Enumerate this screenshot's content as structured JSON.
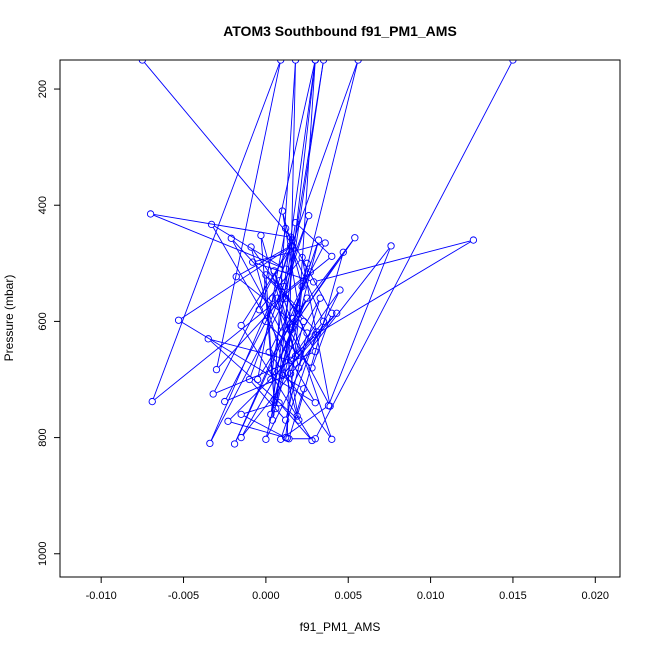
{
  "chart_data": {
    "type": "scatter",
    "title": "ATOM3 Southbound f91_PM1_AMS",
    "xlabel": "f91_PM1_AMS",
    "ylabel": "Pressure (mbar)",
    "xlim": [
      -0.0125,
      0.0215
    ],
    "ylim": [
      1040,
      150
    ],
    "y_inverted": true,
    "x_ticks": [
      -0.01,
      -0.005,
      0.0,
      0.005,
      0.01,
      0.015,
      0.02
    ],
    "x_tick_labels": [
      "-0.010",
      "-0.005",
      "0.000",
      "0.005",
      "0.010",
      "0.015",
      "0.020"
    ],
    "y_ticks": [
      200,
      400,
      600,
      800,
      1000
    ],
    "y_tick_labels": [
      "200",
      "400",
      "600",
      "800",
      "1000"
    ],
    "grid": false,
    "series": [
      {
        "line_color": "#0000ff",
        "marker": "open-circle",
        "points": [
          [
            -0.0075,
            150
          ],
          [
            0.0015,
            455
          ],
          [
            -0.007,
            415
          ],
          [
            0.0012,
            510
          ],
          [
            -0.0033,
            433
          ],
          [
            0.003,
            740
          ],
          [
            -0.0053,
            598
          ],
          [
            0.0016,
            470
          ],
          [
            -0.0015,
            607
          ],
          [
            0.0028,
            805
          ],
          [
            0.0008,
            740
          ],
          [
            -0.0015,
            760
          ],
          [
            0.0012,
            800
          ],
          [
            0.0022,
            540
          ],
          [
            0.001,
            410
          ],
          [
            0.002,
            578
          ],
          [
            0.0,
            520
          ],
          [
            0.0005,
            735
          ],
          [
            -0.0003,
            452
          ],
          [
            0.0018,
            660
          ],
          [
            0.0035,
            600
          ],
          [
            0.0015,
            470
          ],
          [
            -0.0018,
            523
          ],
          [
            0.0025,
            620
          ],
          [
            0.0012,
            770
          ],
          [
            -0.001,
            700
          ],
          [
            0.0026,
            418
          ],
          [
            0.001,
            560
          ],
          [
            -0.003,
            683
          ],
          [
            0.0009,
            150
          ],
          [
            -0.0069,
            738
          ],
          [
            0.004,
            488
          ],
          [
            0.0018,
            430
          ],
          [
            0.0003,
            700
          ],
          [
            0.0025,
            560
          ],
          [
            -0.0005,
            700
          ],
          [
            0.0012,
            440
          ],
          [
            0.004,
            586
          ],
          [
            0.0028,
            680
          ],
          [
            0.0,
            600
          ],
          [
            0.0016,
            460
          ],
          [
            -0.0032,
            725
          ],
          [
            0.003,
            652
          ],
          [
            0.0008,
            530
          ],
          [
            0.0056,
            150
          ],
          [
            0.0016,
            610
          ],
          [
            0.0054,
            456
          ],
          [
            0.001,
            620
          ],
          [
            -0.0021,
            457
          ],
          [
            0.0031,
            618
          ],
          [
            0.0009,
            803
          ],
          [
            0.0038,
            745
          ],
          [
            0.0076,
            470
          ],
          [
            -0.0015,
            800
          ],
          [
            0.0033,
            560
          ],
          [
            0.002,
            680
          ],
          [
            0.0005,
            513
          ],
          [
            0.004,
            803
          ],
          [
            0.0002,
            653
          ],
          [
            0.0036,
            465
          ],
          [
            -0.0008,
            498
          ],
          [
            0.0029,
            532
          ],
          [
            0.0126,
            460
          ],
          [
            0.003,
            623
          ],
          [
            0.001,
            693
          ],
          [
            0.0043,
            586
          ],
          [
            -0.0023,
            772
          ],
          [
            0.0013,
            801
          ],
          [
            0.0018,
            150
          ],
          [
            0.0004,
            770
          ],
          [
            0.0025,
            500
          ],
          [
            0.0,
            803
          ],
          [
            0.0045,
            546
          ],
          [
            0.0015,
            667
          ],
          [
            -0.0035,
            630
          ],
          [
            0.002,
            770
          ],
          [
            0.0007,
            560
          ],
          [
            0.0027,
            515
          ],
          [
            -0.0019,
            811
          ],
          [
            0.0016,
            595
          ],
          [
            0.0032,
            460
          ],
          [
            0.0006,
            750
          ],
          [
            0.003,
            150
          ],
          [
            -0.0004,
            580
          ],
          [
            0.0022,
            490
          ],
          [
            0.0039,
            746
          ],
          [
            0.0004,
            560
          ],
          [
            -0.0034,
            810
          ],
          [
            0.0012,
            560
          ],
          [
            0.0035,
            150
          ],
          [
            0.0003,
            760
          ],
          [
            0.0015,
            615
          ],
          [
            0.0047,
            481
          ],
          [
            0.0019,
            763
          ],
          [
            -0.0009,
            472
          ],
          [
            0.0023,
            600
          ],
          [
            0.0015,
            690
          ],
          [
            -0.0025,
            738
          ],
          [
            0.0011,
            540
          ],
          [
            0.003,
            150
          ],
          [
            0.002,
            586
          ],
          [
            0.0005,
            686
          ],
          [
            0.0023,
            716
          ],
          [
            0.0014,
            802
          ],
          [
            0.003,
            802
          ],
          [
            0.015,
            150
          ]
        ]
      }
    ]
  }
}
